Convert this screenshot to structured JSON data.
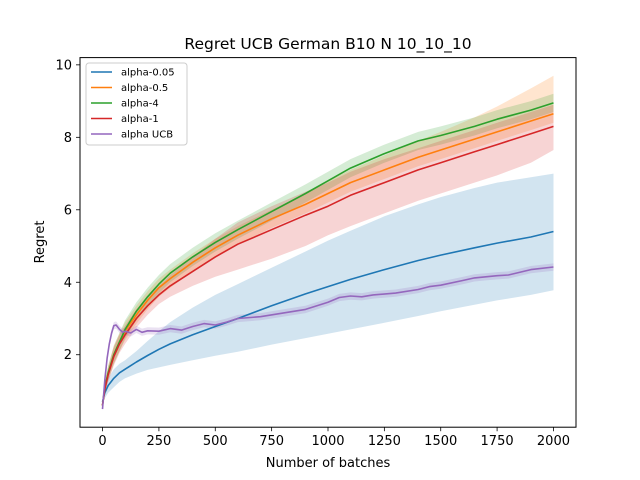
{
  "chart_data": {
    "type": "line",
    "title": "Regret UCB German B10 N 10_10_10",
    "xlabel": "Number of batches",
    "ylabel": "Regret",
    "xlim": [
      -100,
      2100
    ],
    "ylim": [
      0,
      10.2
    ],
    "xticks": [
      0,
      250,
      500,
      750,
      1000,
      1250,
      1500,
      1750,
      2000
    ],
    "yticks": [
      2,
      4,
      6,
      8,
      10
    ],
    "grid": false,
    "legend_position": "top-left",
    "series": [
      {
        "name": "alpha-0.05",
        "color": "#1f77b4",
        "x": [
          0,
          10,
          25,
          50,
          75,
          100,
          150,
          200,
          250,
          300,
          400,
          500,
          600,
          750,
          900,
          1000,
          1100,
          1250,
          1400,
          1500,
          1650,
          1750,
          1900,
          2000
        ],
        "y": [
          0.7,
          0.95,
          1.15,
          1.35,
          1.5,
          1.6,
          1.8,
          1.98,
          2.15,
          2.3,
          2.55,
          2.78,
          3.0,
          3.35,
          3.68,
          3.88,
          4.08,
          4.35,
          4.6,
          4.75,
          4.95,
          5.08,
          5.25,
          5.4
        ],
        "lower": [
          0.6,
          0.8,
          0.95,
          1.1,
          1.25,
          1.35,
          1.48,
          1.58,
          1.65,
          1.72,
          1.85,
          1.97,
          2.08,
          2.28,
          2.46,
          2.58,
          2.7,
          2.88,
          3.07,
          3.2,
          3.38,
          3.5,
          3.65,
          3.78
        ],
        "upper": [
          0.8,
          1.1,
          1.35,
          1.6,
          1.75,
          1.85,
          2.1,
          2.38,
          2.65,
          2.9,
          3.3,
          3.65,
          3.95,
          4.4,
          4.85,
          5.15,
          5.42,
          5.82,
          6.15,
          6.35,
          6.6,
          6.75,
          6.9,
          7.0
        ]
      },
      {
        "name": "alpha-0.5",
        "color": "#ff7f0e",
        "x": [
          0,
          10,
          25,
          50,
          75,
          100,
          150,
          200,
          250,
          300,
          400,
          500,
          600,
          750,
          900,
          1000,
          1100,
          1250,
          1400,
          1500,
          1650,
          1750,
          1900,
          2000
        ],
        "y": [
          0.6,
          1.1,
          1.5,
          2.0,
          2.35,
          2.65,
          3.1,
          3.5,
          3.85,
          4.1,
          4.55,
          4.95,
          5.3,
          5.75,
          6.15,
          6.45,
          6.75,
          7.1,
          7.45,
          7.65,
          7.95,
          8.15,
          8.45,
          8.65
        ],
        "lower": [
          0.5,
          0.95,
          1.3,
          1.75,
          2.1,
          2.4,
          2.85,
          3.25,
          3.6,
          3.85,
          4.3,
          4.7,
          5.05,
          5.5,
          5.9,
          6.2,
          6.5,
          6.85,
          7.2,
          7.4,
          7.7,
          7.9,
          8.2,
          8.4
        ],
        "upper": [
          0.7,
          1.25,
          1.7,
          2.25,
          2.6,
          2.9,
          3.35,
          3.75,
          4.1,
          4.35,
          4.8,
          5.2,
          5.55,
          6.0,
          6.45,
          6.8,
          7.1,
          7.5,
          7.9,
          8.15,
          8.55,
          8.85,
          9.35,
          9.7
        ]
      },
      {
        "name": "alpha-4",
        "color": "#2ca02c",
        "x": [
          0,
          10,
          25,
          50,
          75,
          100,
          150,
          200,
          250,
          300,
          400,
          500,
          600,
          750,
          900,
          1000,
          1100,
          1250,
          1400,
          1500,
          1650,
          1750,
          1900,
          2000
        ],
        "y": [
          0.6,
          1.1,
          1.5,
          2.0,
          2.35,
          2.7,
          3.2,
          3.6,
          3.95,
          4.25,
          4.7,
          5.1,
          5.45,
          5.95,
          6.45,
          6.8,
          7.15,
          7.55,
          7.9,
          8.05,
          8.3,
          8.5,
          8.75,
          8.95
        ],
        "lower": [
          0.5,
          0.95,
          1.3,
          1.75,
          2.1,
          2.45,
          2.95,
          3.35,
          3.7,
          4.0,
          4.45,
          4.85,
          5.2,
          5.7,
          6.2,
          6.55,
          6.9,
          7.3,
          7.65,
          7.8,
          8.05,
          8.25,
          8.5,
          8.7
        ],
        "upper": [
          0.7,
          1.25,
          1.7,
          2.25,
          2.6,
          2.95,
          3.45,
          3.85,
          4.2,
          4.5,
          4.95,
          5.35,
          5.7,
          6.2,
          6.7,
          7.05,
          7.4,
          7.8,
          8.15,
          8.3,
          8.55,
          8.75,
          9.0,
          9.2
        ]
      },
      {
        "name": "alpha-1",
        "color": "#d62728",
        "x": [
          0,
          10,
          25,
          50,
          75,
          100,
          150,
          200,
          250,
          300,
          400,
          500,
          600,
          750,
          900,
          1000,
          1100,
          1250,
          1400,
          1500,
          1650,
          1750,
          1900,
          2000
        ],
        "y": [
          0.6,
          1.05,
          1.45,
          1.95,
          2.3,
          2.55,
          3.0,
          3.35,
          3.65,
          3.9,
          4.3,
          4.7,
          5.05,
          5.45,
          5.85,
          6.1,
          6.4,
          6.75,
          7.1,
          7.3,
          7.6,
          7.8,
          8.1,
          8.3
        ],
        "lower": [
          0.5,
          0.9,
          1.25,
          1.7,
          2.05,
          2.3,
          2.75,
          3.1,
          3.4,
          3.6,
          3.9,
          4.15,
          4.35,
          4.65,
          5.0,
          5.3,
          5.55,
          5.9,
          6.25,
          6.45,
          6.75,
          6.95,
          7.3,
          7.65
        ],
        "upper": [
          0.7,
          1.2,
          1.65,
          2.2,
          2.55,
          2.8,
          3.25,
          3.6,
          3.9,
          4.2,
          4.7,
          5.2,
          5.65,
          6.1,
          6.5,
          6.75,
          7.05,
          7.4,
          7.7,
          7.9,
          8.2,
          8.4,
          8.7,
          8.9
        ]
      },
      {
        "name": "alpha UCB",
        "color": "#9467bd",
        "x": [
          0,
          10,
          20,
          30,
          40,
          50,
          60,
          75,
          90,
          100,
          125,
          150,
          175,
          200,
          250,
          300,
          350,
          400,
          450,
          500,
          550,
          600,
          700,
          800,
          900,
          1000,
          1050,
          1100,
          1150,
          1200,
          1300,
          1400,
          1450,
          1500,
          1600,
          1650,
          1700,
          1750,
          1800,
          1900,
          2000
        ],
        "y": [
          0.5,
          1.3,
          1.9,
          2.3,
          2.6,
          2.8,
          2.82,
          2.7,
          2.62,
          2.65,
          2.6,
          2.7,
          2.62,
          2.66,
          2.65,
          2.72,
          2.68,
          2.78,
          2.86,
          2.82,
          2.9,
          3.0,
          3.05,
          3.15,
          3.25,
          3.45,
          3.58,
          3.62,
          3.6,
          3.65,
          3.7,
          3.8,
          3.88,
          3.92,
          4.05,
          4.12,
          4.15,
          4.18,
          4.2,
          4.35,
          4.42
        ],
        "lower": [
          0.45,
          1.2,
          1.8,
          2.2,
          2.5,
          2.7,
          2.72,
          2.6,
          2.52,
          2.55,
          2.5,
          2.6,
          2.52,
          2.56,
          2.55,
          2.62,
          2.58,
          2.68,
          2.76,
          2.72,
          2.8,
          2.9,
          2.95,
          3.05,
          3.15,
          3.35,
          3.48,
          3.52,
          3.5,
          3.55,
          3.6,
          3.7,
          3.78,
          3.82,
          3.95,
          4.02,
          4.05,
          4.08,
          4.1,
          4.25,
          4.32
        ],
        "upper": [
          0.55,
          1.4,
          2.0,
          2.4,
          2.7,
          2.9,
          2.92,
          2.8,
          2.72,
          2.75,
          2.7,
          2.8,
          2.72,
          2.76,
          2.75,
          2.82,
          2.78,
          2.88,
          2.96,
          2.92,
          3.0,
          3.1,
          3.15,
          3.25,
          3.35,
          3.55,
          3.68,
          3.72,
          3.7,
          3.75,
          3.8,
          3.9,
          3.98,
          4.02,
          4.15,
          4.22,
          4.25,
          4.28,
          4.3,
          4.45,
          4.52
        ]
      }
    ]
  }
}
